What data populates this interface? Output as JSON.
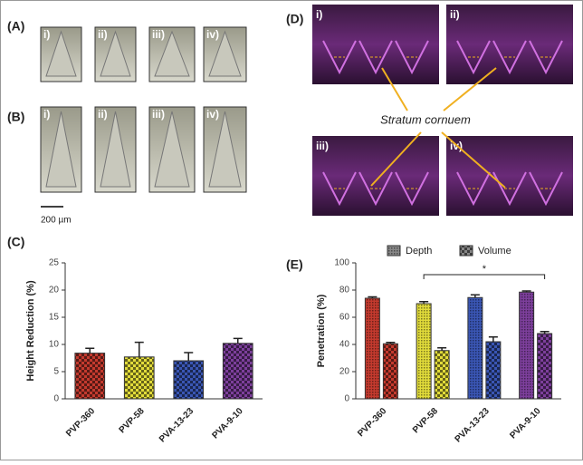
{
  "figure": {
    "panel_labels": [
      "(A)",
      "(B)",
      "(C)",
      "(D)",
      "(E)"
    ],
    "image_labels": [
      "i)",
      "ii)",
      "iii)",
      "iv)"
    ],
    "scale_bar": "200 µm",
    "annotation": "Stratum cornuem"
  },
  "chart_data": [
    {
      "type": "bar",
      "ylabel": "Height Reduction (%)",
      "categories": [
        "PVP-360",
        "PVP-58",
        "PVA-13-23",
        "PVA-9-10"
      ],
      "values": [
        8.4,
        7.7,
        7.0,
        10.2
      ],
      "errors": [
        0.9,
        2.7,
        1.5,
        0.9
      ],
      "colors": [
        "#c43a2e",
        "#e2dc3a",
        "#3a56b4",
        "#7d3f9c"
      ],
      "ylim": [
        0,
        25
      ],
      "yticks": [
        0,
        5,
        10,
        15,
        20,
        25
      ]
    },
    {
      "type": "grouped_bar",
      "ylabel": "Penetration (%)",
      "categories": [
        "PVP-360",
        "PVP-58",
        "PVA-13-23",
        "PVA-9-10"
      ],
      "series": [
        {
          "name": "Depth",
          "values": [
            74,
            70,
            74.5,
            78.5
          ],
          "errors": [
            1,
            1.5,
            2,
            0.8
          ]
        },
        {
          "name": "Volume",
          "values": [
            40.5,
            35.5,
            42,
            48
          ],
          "errors": [
            1,
            2,
            3.5,
            1.5
          ]
        }
      ],
      "colors": [
        "#c43a2e",
        "#e2dc3a",
        "#3a56b4",
        "#7d3f9c"
      ],
      "ylim": [
        0,
        100
      ],
      "yticks": [
        0,
        20,
        40,
        60,
        80,
        100
      ],
      "significance": "*"
    }
  ]
}
